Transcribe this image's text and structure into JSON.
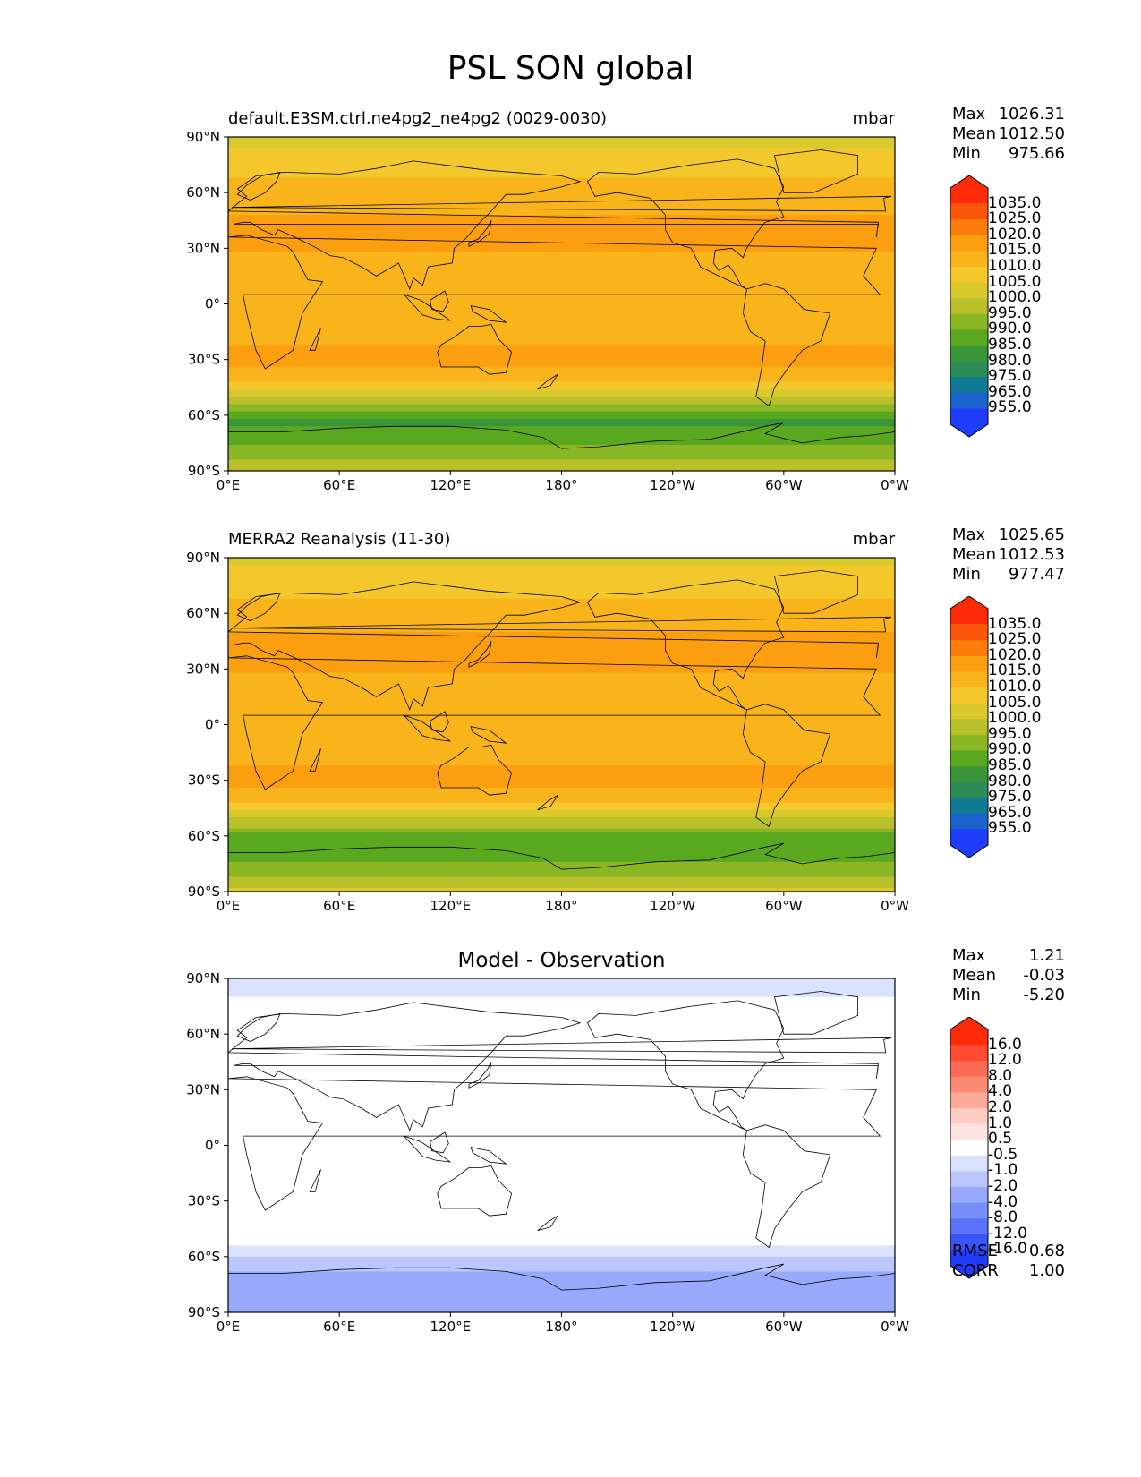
{
  "title": "PSL SON global",
  "chart_data": [
    {
      "type": "heatmap",
      "panel_title": "default.E3SM.ctrl.ne4pg2_ne4pg2 (0029-0030)",
      "units": "mbar",
      "stats": [
        {
          "label": "Max",
          "value": "1026.31"
        },
        {
          "label": "Mean",
          "value": "1012.50"
        },
        {
          "label": "Min",
          "value": "975.66"
        }
      ],
      "xticks": [
        "0°E",
        "60°E",
        "120°E",
        "180°",
        "120°W",
        "60°W",
        "0°W"
      ],
      "yticks": [
        "90°N",
        "60°N",
        "30°N",
        "0°",
        "30°S",
        "60°S",
        "90°S"
      ],
      "xlim": [
        0,
        360
      ],
      "ylim": [
        -90,
        90
      ],
      "colorbar_levels": [
        "1035.0",
        "1025.0",
        "1020.0",
        "1015.0",
        "1010.0",
        "1005.0",
        "1000.0",
        "995.0",
        "990.0",
        "985.0",
        "980.0",
        "975.0",
        "965.0",
        "955.0"
      ],
      "colorbar_colors": [
        "#fe2b08",
        "#fb5509",
        "#fb7b0b",
        "#fb9f10",
        "#f8b41a",
        "#f4c82c",
        "#d9c92c",
        "#b9c02a",
        "#8cb725",
        "#5aa81f",
        "#3a9438",
        "#2e8c57",
        "#0f7a94",
        "#1a63cd",
        "#1f3dfa"
      ],
      "lat_profile": [
        {
          "lat": 90,
          "p": 1002
        },
        {
          "lat": 75,
          "p": 1009
        },
        {
          "lat": 60,
          "p": 1011
        },
        {
          "lat": 45,
          "p": 1016
        },
        {
          "lat": 35,
          "p": 1018
        },
        {
          "lat": 15,
          "p": 1010
        },
        {
          "lat": 0,
          "p": 1011
        },
        {
          "lat": -15,
          "p": 1013
        },
        {
          "lat": -30,
          "p": 1017
        },
        {
          "lat": -42,
          "p": 1011
        },
        {
          "lat": -55,
          "p": 994
        },
        {
          "lat": -62,
          "p": 984
        },
        {
          "lat": -70,
          "p": 986
        },
        {
          "lat": -80,
          "p": 992
        },
        {
          "lat": -90,
          "p": 999
        }
      ]
    },
    {
      "type": "heatmap",
      "panel_title": "MERRA2 Reanalysis (11-30)",
      "units": "mbar",
      "stats": [
        {
          "label": "Max",
          "value": "1025.65"
        },
        {
          "label": "Mean",
          "value": "1012.53"
        },
        {
          "label": "Min",
          "value": "977.47"
        }
      ],
      "xticks": [
        "0°E",
        "60°E",
        "120°E",
        "180°",
        "120°W",
        "60°W",
        "0°W"
      ],
      "yticks": [
        "90°N",
        "60°N",
        "30°N",
        "0°",
        "30°S",
        "60°S",
        "90°S"
      ],
      "xlim": [
        0,
        360
      ],
      "ylim": [
        -90,
        90
      ],
      "colorbar_levels": [
        "1035.0",
        "1025.0",
        "1020.0",
        "1015.0",
        "1010.0",
        "1005.0",
        "1000.0",
        "995.0",
        "990.0",
        "985.0",
        "980.0",
        "975.0",
        "965.0",
        "955.0"
      ],
      "colorbar_colors": [
        "#fe2b08",
        "#fb5509",
        "#fb7b0b",
        "#fb9f10",
        "#f8b41a",
        "#f4c82c",
        "#d9c92c",
        "#b9c02a",
        "#8cb725",
        "#5aa81f",
        "#3a9438",
        "#2e8c57",
        "#0f7a94",
        "#1a63cd",
        "#1f3dfa"
      ],
      "lat_profile": [
        {
          "lat": 90,
          "p": 1003
        },
        {
          "lat": 75,
          "p": 1009
        },
        {
          "lat": 60,
          "p": 1011
        },
        {
          "lat": 45,
          "p": 1017
        },
        {
          "lat": 35,
          "p": 1018
        },
        {
          "lat": 15,
          "p": 1010
        },
        {
          "lat": 0,
          "p": 1011
        },
        {
          "lat": -15,
          "p": 1013
        },
        {
          "lat": -30,
          "p": 1017
        },
        {
          "lat": -42,
          "p": 1011
        },
        {
          "lat": -55,
          "p": 995
        },
        {
          "lat": -62,
          "p": 986
        },
        {
          "lat": -70,
          "p": 988
        },
        {
          "lat": -80,
          "p": 994
        },
        {
          "lat": -90,
          "p": 1002
        }
      ]
    },
    {
      "type": "heatmap",
      "panel_title": "Model - Observation",
      "units": "",
      "stats": [
        {
          "label": "Max",
          "value": "1.21"
        },
        {
          "label": "Mean",
          "value": "-0.03"
        },
        {
          "label": "Min",
          "value": "-5.20"
        }
      ],
      "extra_stats": [
        {
          "label": "RMSE",
          "value": "0.68"
        },
        {
          "label": "CORR",
          "value": "1.00"
        }
      ],
      "xticks": [
        "0°E",
        "60°E",
        "120°E",
        "180°",
        "120°W",
        "60°W",
        "0°W"
      ],
      "yticks": [
        "90°N",
        "60°N",
        "30°N",
        "0°",
        "30°S",
        "60°S",
        "90°S"
      ],
      "xlim": [
        0,
        360
      ],
      "ylim": [
        -90,
        90
      ],
      "colorbar_levels": [
        "16.0",
        "12.0",
        "8.0",
        "4.0",
        "2.0",
        "1.0",
        "0.5",
        "-0.5",
        "-1.0",
        "-2.0",
        "-4.0",
        "-8.0",
        "-12.0",
        "-16.0"
      ],
      "colorbar_colors": [
        "#fe2b08",
        "#fd4a30",
        "#fb6a52",
        "#fc8a72",
        "#fcab99",
        "#fdcdc2",
        "#fde3df",
        "#ffffff",
        "#dbe2fe",
        "#bac6fc",
        "#98a9fb",
        "#7a8efa",
        "#5a73fa",
        "#3a55fa",
        "#1f3dfa"
      ],
      "lat_profile": [
        {
          "lat": 90,
          "p": -0.7
        },
        {
          "lat": 80,
          "p": -0.6
        },
        {
          "lat": 76,
          "p": 0.0
        },
        {
          "lat": -40,
          "p": 0.0
        },
        {
          "lat": -52,
          "p": -0.3
        },
        {
          "lat": -58,
          "p": -0.8
        },
        {
          "lat": -64,
          "p": -1.5
        },
        {
          "lat": -72,
          "p": -2.5
        },
        {
          "lat": -80,
          "p": -3.0
        },
        {
          "lat": -90,
          "p": -3.4
        }
      ]
    }
  ]
}
